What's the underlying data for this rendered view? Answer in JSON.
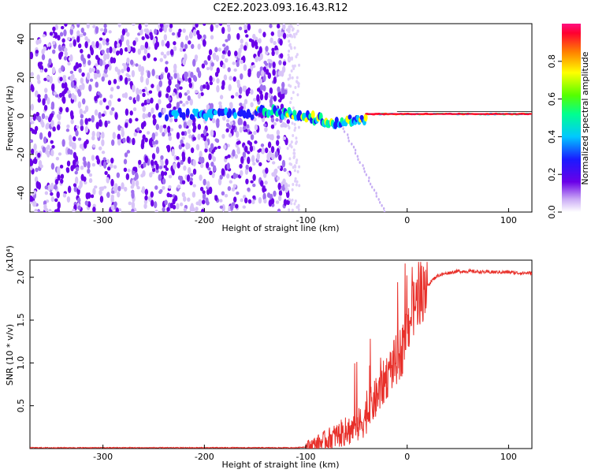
{
  "title": "C2E2.2023.093.16.43.R12",
  "chart_data": [
    {
      "type": "heatmap",
      "xlabel": "Height of straight line (km)",
      "ylabel": "Frequency (Hz)",
      "xlim": [
        -372,
        123
      ],
      "ylim": [
        -50,
        48
      ],
      "x_ticks": [
        "-300",
        "-200",
        "-100",
        "0",
        "100"
      ],
      "y_ticks": [
        "40",
        "20",
        "0",
        "-20",
        "-40"
      ],
      "colorbar": {
        "label": "Normalized spectral amplitude",
        "range": [
          0.0,
          1.0
        ],
        "ticks": [
          "0.0",
          "0.2",
          "0.4",
          "0.6",
          "0.8"
        ]
      },
      "features": {
        "noise_region_x": [
          -372,
          -115
        ],
        "signal_start_x": -245,
        "signal_center_freq": 1
      }
    },
    {
      "type": "line",
      "xlabel": "Height of straight line (km)",
      "ylabel": "SNR (10 * v/v)",
      "y_multiplier": "(x10⁴)",
      "xlim": [
        -372,
        123
      ],
      "ylim": [
        0,
        2.2
      ],
      "x_ticks": [
        "-300",
        "-200",
        "-100",
        "0",
        "100"
      ],
      "y_ticks": [
        "2.0",
        "1.5",
        "1.0",
        "0.5"
      ],
      "series": [
        {
          "color": "#e8302a",
          "x": [
            -372,
            -300,
            -200,
            -110,
            -100,
            -90,
            -80,
            -70,
            -60,
            -50,
            -45,
            -40,
            -30,
            -20,
            -10,
            -5,
            0,
            5,
            10,
            20,
            25,
            30,
            40,
            50,
            60,
            80,
            100,
            110,
            123
          ],
          "y": [
            0.01,
            0.01,
            0.01,
            0.01,
            0.02,
            0.05,
            0.1,
            0.15,
            0.2,
            0.25,
            0.3,
            0.4,
            0.6,
            0.85,
            1.05,
            1.15,
            1.4,
            1.6,
            1.75,
            1.9,
            1.97,
            2.02,
            2.05,
            2.07,
            2.07,
            2.06,
            2.06,
            2.05,
            2.05
          ]
        }
      ]
    }
  ]
}
